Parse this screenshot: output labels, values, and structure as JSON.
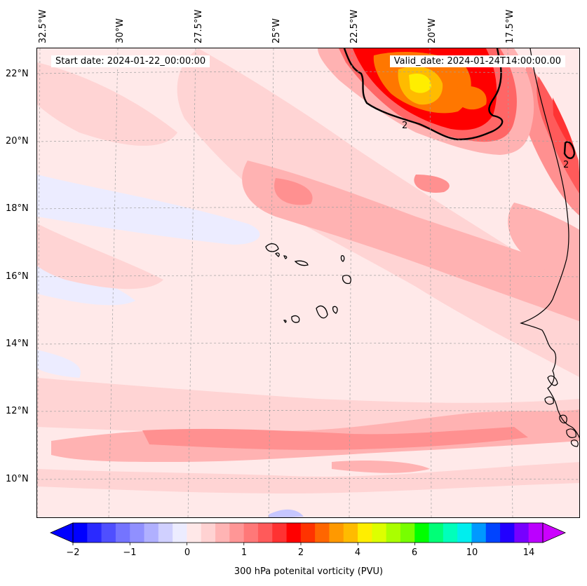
{
  "map": {
    "start_date_label": "Start date: 2024-01-22_00:00:00",
    "valid_date_label": "Valid_date: 2024-01-24T14:00:00.00",
    "contour_label": "2",
    "longitude_labels": [
      "32.5°W",
      "30°W",
      "27.5°W",
      "25°W",
      "22.5°W",
      "20°W",
      "17.5°W"
    ],
    "latitude_labels": [
      "22°N",
      "20°N",
      "18°N",
      "16°N",
      "14°N",
      "12°N",
      "10°N"
    ]
  },
  "colorbar": {
    "label": "300 hPa potenital vorticity (PVU)",
    "tick_labels": [
      "−2",
      "−1",
      "0",
      "1",
      "2",
      "4",
      "6",
      "10",
      "14"
    ],
    "colors": [
      "#0000ff",
      "#2a2aff",
      "#4f4fff",
      "#7474ff",
      "#9090ff",
      "#b0b0ff",
      "#d0d0ff",
      "#ececff",
      "#ffe8e8",
      "#ffd2d2",
      "#ffb4b4",
      "#ff9696",
      "#ff7878",
      "#ff5a5a",
      "#ff3232",
      "#ff0000",
      "#ff3300",
      "#ff6600",
      "#ff9900",
      "#ffbb00",
      "#ffee00",
      "#ddff00",
      "#aaff00",
      "#77ff00",
      "#00ff00",
      "#00ff77",
      "#00ffbb",
      "#00eeee",
      "#0099ff",
      "#0044ff",
      "#2200ff",
      "#7700ff",
      "#bb00ff"
    ],
    "extend_low_color": "#0000ff",
    "extend_high_color": "#cc00ff"
  },
  "pv_field_colors": {
    "background": "#ffe9e9",
    "light_pink": "#ffd4d4",
    "pink": "#ffb2b2",
    "salmon": "#ff9090",
    "red_light": "#ff6666",
    "red": "#ff3333",
    "red_deep": "#ff0000",
    "orange": "#ff7700",
    "yellow": "#ffdd00",
    "blue_light": "#ececff",
    "blue": "#c6c6ff"
  }
}
